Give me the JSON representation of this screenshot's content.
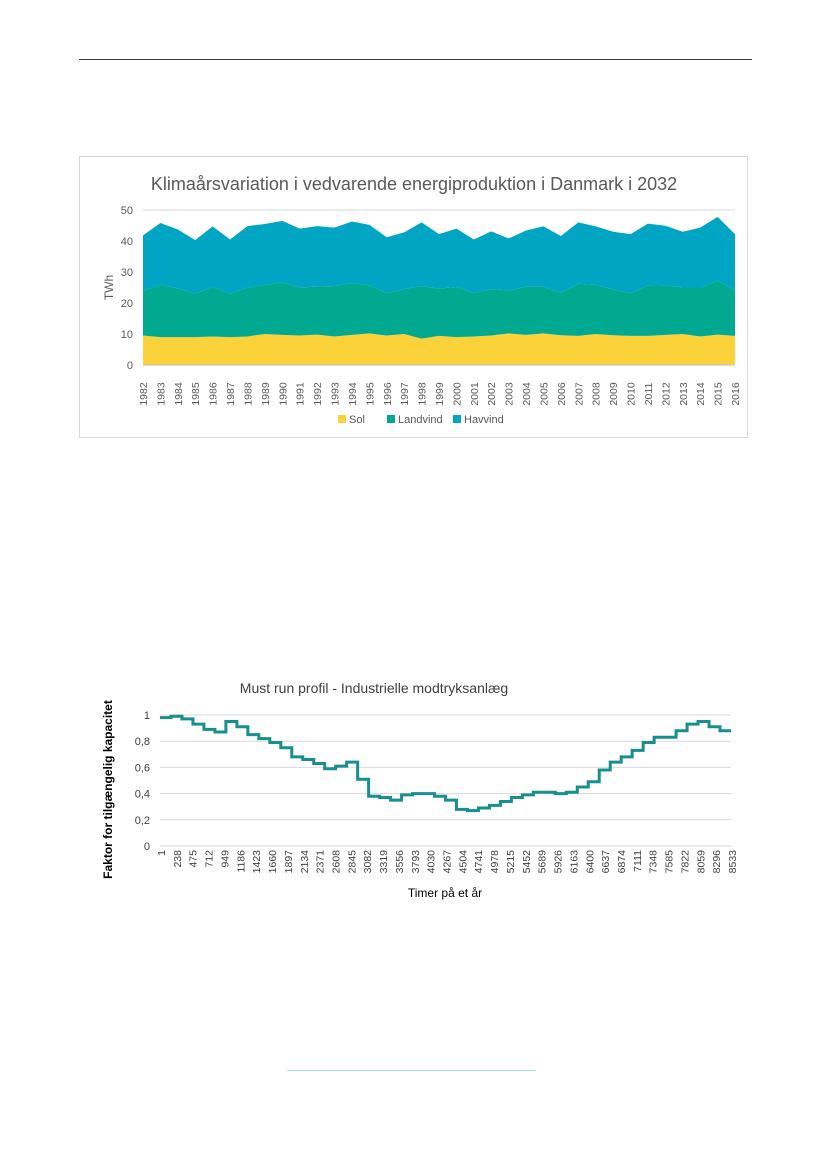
{
  "chart_data": [
    {
      "type": "area",
      "stacked": true,
      "title": "Klimaårsvariation i vedvarende energiproduktion i Danmark i 2032",
      "xlabel": "",
      "ylabel": "TWh",
      "ylim": [
        0,
        50
      ],
      "yticks": [
        "0",
        "10",
        "20",
        "30",
        "40",
        "50"
      ],
      "grid": true,
      "legend_position": "bottom",
      "categories": [
        "1982",
        "1983",
        "1984",
        "1985",
        "1986",
        "1987",
        "1988",
        "1989",
        "1990",
        "1991",
        "1992",
        "1993",
        "1994",
        "1995",
        "1996",
        "1997",
        "1998",
        "1999",
        "2000",
        "2001",
        "2002",
        "2003",
        "2004",
        "2005",
        "2006",
        "2007",
        "2008",
        "2009",
        "2010",
        "2011",
        "2012",
        "2013",
        "2014",
        "2015",
        "2016"
      ],
      "series": [
        {
          "name": "Sol",
          "color": "#fbd23a",
          "values": [
            9.5,
            9.0,
            9.0,
            9.0,
            9.2,
            9.0,
            9.2,
            10.0,
            9.7,
            9.5,
            9.8,
            9.2,
            9.7,
            10.2,
            9.5,
            10.0,
            8.5,
            9.4,
            9.0,
            9.2,
            9.5,
            10.2,
            9.7,
            10.2,
            9.6,
            9.4,
            10.0,
            9.6,
            9.4,
            9.4,
            9.7,
            10.0,
            9.2,
            9.8,
            9.4
          ]
        },
        {
          "name": "Landvind",
          "color": "#00a98f",
          "values": [
            14.5,
            16.8,
            15.7,
            14.0,
            16.0,
            14.0,
            15.8,
            15.8,
            17.0,
            15.5,
            15.5,
            16.3,
            16.8,
            15.5,
            13.7,
            14.5,
            17.0,
            15.2,
            16.2,
            14.0,
            15.0,
            13.8,
            15.5,
            15.0,
            13.8,
            16.8,
            15.8,
            14.8,
            13.8,
            16.2,
            16.0,
            15.0,
            15.8,
            17.4,
            14.6
          ]
        },
        {
          "name": "Havvind",
          "color": "#00a5c3",
          "values": [
            17.8,
            20.0,
            19.0,
            17.3,
            19.5,
            17.5,
            19.8,
            19.7,
            19.8,
            19.0,
            19.5,
            18.8,
            19.8,
            19.5,
            18.0,
            18.3,
            20.5,
            17.6,
            18.8,
            17.3,
            18.6,
            16.8,
            18.2,
            19.5,
            18.2,
            19.8,
            18.9,
            18.6,
            19.0,
            20.0,
            19.2,
            18.0,
            19.3,
            20.6,
            18.2
          ]
        }
      ]
    },
    {
      "type": "line",
      "title": "Must run profil - Industrielle modtryksanlæg",
      "xlabel": "Timer på et år",
      "ylabel": "Faktor for tilgængelig kapacitet",
      "ylim": [
        0,
        1
      ],
      "yticks": [
        "0",
        "0,2",
        "0,4",
        "0,6",
        "0,8",
        "1"
      ],
      "grid": true,
      "x_tick_labels": [
        "1",
        "238",
        "475",
        "712",
        "949",
        "1186",
        "1423",
        "1660",
        "1897",
        "2134",
        "2371",
        "2608",
        "2845",
        "3082",
        "3319",
        "3556",
        "3793",
        "4030",
        "4267",
        "4504",
        "4741",
        "4978",
        "5215",
        "5452",
        "5689",
        "5926",
        "6163",
        "6400",
        "6637",
        "6874",
        "7111",
        "7348",
        "7585",
        "7822",
        "8059",
        "8296",
        "8533"
      ],
      "series": [
        {
          "name": "",
          "color": "#178f8f",
          "step": true,
          "values": [
            0.98,
            0.99,
            0.97,
            0.93,
            0.89,
            0.87,
            0.95,
            0.91,
            0.85,
            0.82,
            0.79,
            0.75,
            0.68,
            0.66,
            0.63,
            0.59,
            0.61,
            0.64,
            0.51,
            0.38,
            0.37,
            0.35,
            0.39,
            0.4,
            0.4,
            0.38,
            0.35,
            0.28,
            0.27,
            0.29,
            0.31,
            0.34,
            0.37,
            0.39,
            0.41,
            0.41,
            0.4,
            0.41,
            0.45,
            0.49,
            0.58,
            0.64,
            0.68,
            0.73,
            0.79,
            0.83,
            0.83,
            0.88,
            0.93,
            0.95,
            0.91,
            0.88
          ]
        }
      ]
    }
  ]
}
